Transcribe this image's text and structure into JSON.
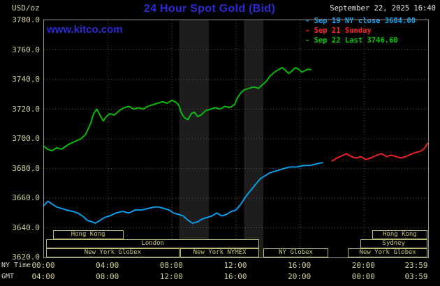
{
  "header": {
    "units": "USD/oz",
    "title": "24 Hour Spot Gold (Bid)",
    "datetime": "September 22, 2025 16:40",
    "watermark": "www.kitco.com"
  },
  "legend": {
    "items": [
      {
        "label": "- Sep 19 NY close 3684.00",
        "color": "#00aaff"
      },
      {
        "label": "- Sep 21 Sunday",
        "color": "#ff2222"
      },
      {
        "label": "- Sep 22 Last 3746.60",
        "color": "#00cc00"
      }
    ]
  },
  "axes": {
    "y_ticks": [
      "3780.0",
      "3760.0",
      "3740.0",
      "3720.0",
      "3700.0",
      "3680.0",
      "3660.0",
      "3640.0",
      "3620.0"
    ],
    "x_tick_hours": [
      0,
      4,
      8,
      12,
      16,
      20,
      23.983
    ],
    "x_rows": [
      {
        "label": "NY Time",
        "ticks": [
          "00:00",
          "04:00",
          "08:00",
          "12:00",
          "16:00",
          "20:00",
          "23:59"
        ]
      },
      {
        "label": "GMT",
        "ticks": [
          "04:00",
          "08:00",
          "12:00",
          "16:00",
          "20:00",
          "00:00",
          "03:59"
        ]
      }
    ]
  },
  "sessions": [
    {
      "row": 0,
      "label": "Hong Kong",
      "from": 0.55,
      "to": 5.0
    },
    {
      "row": 0,
      "label": "Hong Kong",
      "from": 20.5,
      "to": 24
    },
    {
      "row": 1,
      "label": "London",
      "from": 0.13,
      "to": 13.5
    },
    {
      "row": 1,
      "label": "Sydney",
      "from": 19.75,
      "to": 24
    },
    {
      "row": 2,
      "label": "New York Globex",
      "from": 0.13,
      "to": 8.5
    },
    {
      "row": 2,
      "label": "New York NYMEX",
      "from": 8.5,
      "to": 13.5
    },
    {
      "row": 2,
      "label": "NY Globex",
      "from": 13.7,
      "to": 17.8
    },
    {
      "row": 2,
      "label": "New York Globex",
      "from": 19.0,
      "to": 24
    }
  ],
  "colors": {
    "background": "#000000",
    "accent_blue": "#2b2bd9",
    "axis_khaki": "#cfcf9c",
    "session_khaki": "#c8c87c",
    "grid": "#565656",
    "shade_band": "#1d1d1d",
    "border": "#909090"
  },
  "chart_data": {
    "type": "line",
    "title": "24 Hour Spot Gold (Bid)",
    "ylabel": "USD/oz",
    "x_unit": "hour of day, NY time",
    "xlim": [
      0,
      24
    ],
    "ylim": [
      3620,
      3780
    ],
    "grid": true,
    "legend_position": "top-right",
    "shade_bands": [
      {
        "from": 8.45,
        "to": 10.3
      },
      {
        "from": 12.5,
        "to": 13.7
      }
    ],
    "series": [
      {
        "name": "Sep 19 NY close 3684.00",
        "color": "#00aaff",
        "points": [
          [
            0.0,
            3655
          ],
          [
            0.25,
            3658
          ],
          [
            0.5,
            3656
          ],
          [
            0.8,
            3654
          ],
          [
            1.1,
            3653
          ],
          [
            1.4,
            3652
          ],
          [
            1.8,
            3651
          ],
          [
            2.1,
            3650
          ],
          [
            2.4,
            3648
          ],
          [
            2.7,
            3645
          ],
          [
            3.0,
            3644
          ],
          [
            3.2,
            3643
          ],
          [
            3.5,
            3645
          ],
          [
            3.8,
            3647
          ],
          [
            4.1,
            3648
          ],
          [
            4.5,
            3650
          ],
          [
            4.9,
            3651
          ],
          [
            5.3,
            3650
          ],
          [
            5.7,
            3652
          ],
          [
            6.1,
            3652
          ],
          [
            6.5,
            3653
          ],
          [
            6.9,
            3654
          ],
          [
            7.2,
            3654
          ],
          [
            7.5,
            3653
          ],
          [
            7.8,
            3652
          ],
          [
            8.1,
            3650
          ],
          [
            8.4,
            3649
          ],
          [
            8.7,
            3648
          ],
          [
            9.0,
            3645
          ],
          [
            9.3,
            3643
          ],
          [
            9.6,
            3644
          ],
          [
            9.9,
            3646
          ],
          [
            10.2,
            3647
          ],
          [
            10.5,
            3648
          ],
          [
            10.8,
            3650
          ],
          [
            11.1,
            3648
          ],
          [
            11.4,
            3649
          ],
          [
            11.7,
            3651
          ],
          [
            12.0,
            3652
          ],
          [
            12.3,
            3656
          ],
          [
            12.6,
            3661
          ],
          [
            12.9,
            3665
          ],
          [
            13.2,
            3669
          ],
          [
            13.5,
            3673
          ],
          [
            13.8,
            3675
          ],
          [
            14.1,
            3677
          ],
          [
            14.4,
            3678
          ],
          [
            14.7,
            3679
          ],
          [
            15.0,
            3680
          ],
          [
            15.4,
            3681
          ],
          [
            15.8,
            3681
          ],
          [
            16.2,
            3682
          ],
          [
            16.6,
            3682
          ],
          [
            17.0,
            3683
          ],
          [
            17.4,
            3684
          ]
        ]
      },
      {
        "name": "Sep 21 Sunday",
        "color": "#ff2222",
        "points": [
          [
            18.0,
            3685
          ],
          [
            18.3,
            3687
          ],
          [
            18.7,
            3689
          ],
          [
            18.9,
            3690
          ],
          [
            19.2,
            3688
          ],
          [
            19.5,
            3687
          ],
          [
            19.8,
            3688
          ],
          [
            20.1,
            3686
          ],
          [
            20.4,
            3687
          ],
          [
            20.8,
            3689
          ],
          [
            21.1,
            3690
          ],
          [
            21.4,
            3688
          ],
          [
            21.7,
            3689
          ],
          [
            22.0,
            3688
          ],
          [
            22.3,
            3687
          ],
          [
            22.6,
            3688
          ],
          [
            23.0,
            3690
          ],
          [
            23.3,
            3691
          ],
          [
            23.6,
            3692
          ],
          [
            23.8,
            3694
          ],
          [
            23.98,
            3697
          ]
        ]
      },
      {
        "name": "Sep 22 Last 3746.60",
        "color": "#00cc00",
        "points": [
          [
            0.0,
            3695
          ],
          [
            0.2,
            3693
          ],
          [
            0.5,
            3692
          ],
          [
            0.8,
            3694
          ],
          [
            1.1,
            3693
          ],
          [
            1.5,
            3696
          ],
          [
            1.9,
            3698
          ],
          [
            2.3,
            3700
          ],
          [
            2.6,
            3703
          ],
          [
            2.9,
            3710
          ],
          [
            3.1,
            3717
          ],
          [
            3.3,
            3720
          ],
          [
            3.5,
            3716
          ],
          [
            3.7,
            3712
          ],
          [
            3.9,
            3715
          ],
          [
            4.1,
            3717
          ],
          [
            4.4,
            3716
          ],
          [
            4.7,
            3719
          ],
          [
            5.0,
            3721
          ],
          [
            5.3,
            3722
          ],
          [
            5.6,
            3720
          ],
          [
            5.9,
            3721
          ],
          [
            6.2,
            3720
          ],
          [
            6.5,
            3722
          ],
          [
            6.8,
            3723
          ],
          [
            7.1,
            3724
          ],
          [
            7.4,
            3725
          ],
          [
            7.7,
            3724
          ],
          [
            8.0,
            3726
          ],
          [
            8.2,
            3725
          ],
          [
            8.4,
            3723
          ],
          [
            8.6,
            3717
          ],
          [
            8.8,
            3714
          ],
          [
            9.0,
            3713
          ],
          [
            9.2,
            3717
          ],
          [
            9.4,
            3718
          ],
          [
            9.6,
            3715
          ],
          [
            9.8,
            3716
          ],
          [
            10.1,
            3719
          ],
          [
            10.4,
            3720
          ],
          [
            10.7,
            3721
          ],
          [
            11.0,
            3720
          ],
          [
            11.3,
            3722
          ],
          [
            11.6,
            3721
          ],
          [
            11.9,
            3723
          ],
          [
            12.1,
            3728
          ],
          [
            12.3,
            3731
          ],
          [
            12.5,
            3733
          ],
          [
            12.8,
            3734
          ],
          [
            13.1,
            3735
          ],
          [
            13.4,
            3734
          ],
          [
            13.7,
            3737
          ],
          [
            13.9,
            3739
          ],
          [
            14.1,
            3742
          ],
          [
            14.4,
            3745
          ],
          [
            14.7,
            3747
          ],
          [
            14.9,
            3748
          ],
          [
            15.1,
            3746
          ],
          [
            15.3,
            3744
          ],
          [
            15.5,
            3746
          ],
          [
            15.7,
            3748
          ],
          [
            15.9,
            3747
          ],
          [
            16.1,
            3745
          ],
          [
            16.3,
            3746
          ],
          [
            16.5,
            3747
          ],
          [
            16.67,
            3746.6
          ]
        ]
      }
    ]
  }
}
